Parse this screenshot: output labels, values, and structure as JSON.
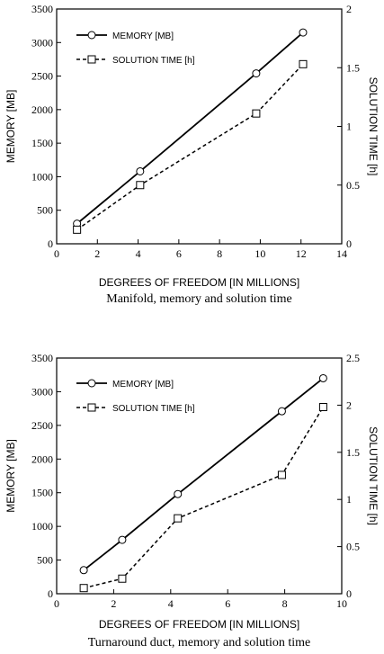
{
  "chart_data": [
    {
      "type": "line",
      "caption": "Manifold, memory and solution time",
      "xlabel": "DEGREES OF FREEDOM [IN MILLIONS]",
      "ylabel": "MEMORY [MB]",
      "y2label": "SOLUTION TIME [h]",
      "xlim": [
        0,
        14
      ],
      "ylim": [
        0,
        3500
      ],
      "y2lim": [
        0,
        2
      ],
      "x_ticks": [
        0,
        2,
        4,
        6,
        8,
        10,
        12,
        14
      ],
      "y_ticks": [
        0,
        500,
        1000,
        1500,
        2000,
        2500,
        3000,
        3500
      ],
      "y2_ticks": [
        "0",
        "0.5",
        "1",
        "1.5",
        "2"
      ],
      "y2_tick_values": [
        0,
        0.5,
        1,
        1.5,
        2
      ],
      "legend_position": "top-left",
      "series": [
        {
          "name": "MEMORY  [MB]",
          "axis": "left",
          "style": "solid-circle",
          "x": [
            1.0,
            4.1,
            9.8,
            12.1
          ],
          "y": [
            300,
            1080,
            2540,
            3150
          ]
        },
        {
          "name": "SOLUTION TIME  [h]",
          "axis": "right",
          "style": "dashed-square",
          "x": [
            1.0,
            4.1,
            9.8,
            12.1
          ],
          "y": [
            0.12,
            0.5,
            1.11,
            1.53
          ]
        }
      ]
    },
    {
      "type": "line",
      "caption": "Turnaround duct, memory and solution time",
      "xlabel": "DEGREES OF FREEDOM  [IN MILLIONS]",
      "ylabel": "MEMORY [MB]",
      "y2label": "SOLUTION TIME [h]",
      "xlim": [
        0,
        10
      ],
      "ylim": [
        0,
        3500
      ],
      "y2lim": [
        0,
        2.5
      ],
      "x_ticks": [
        0,
        2,
        4,
        6,
        8,
        10
      ],
      "y_ticks": [
        0,
        500,
        1000,
        1500,
        2000,
        2500,
        3000,
        3500
      ],
      "y2_ticks": [
        "0",
        "0.5",
        "1",
        "1.5",
        "2",
        "2.5"
      ],
      "y2_tick_values": [
        0,
        0.5,
        1,
        1.5,
        2,
        2.5
      ],
      "legend_position": "top-left",
      "series": [
        {
          "name": "MEMORY  [MB]",
          "axis": "left",
          "style": "solid-circle",
          "x": [
            0.95,
            2.3,
            4.25,
            7.9,
            9.35
          ],
          "y": [
            350,
            800,
            1480,
            2710,
            3200
          ]
        },
        {
          "name": "SOLUTION TIME  [h]",
          "axis": "right",
          "style": "dashed-square",
          "x": [
            0.95,
            2.3,
            4.25,
            7.9,
            9.35
          ],
          "y": [
            0.06,
            0.16,
            0.8,
            1.26,
            1.98
          ]
        }
      ]
    }
  ]
}
